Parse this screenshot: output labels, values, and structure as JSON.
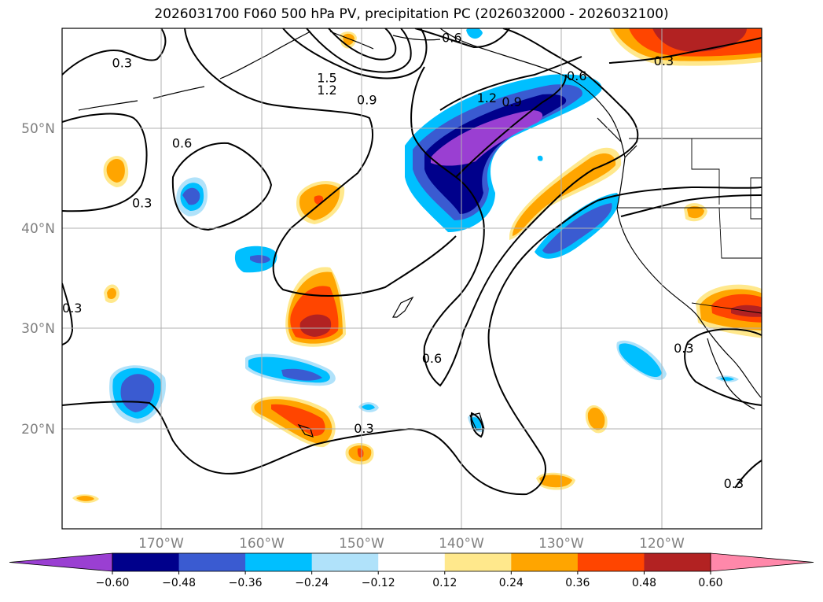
{
  "title": "2026031700 F060 500 hPa PV, precipitation PC (2026032000 - 2026032100)",
  "map": {
    "projection": "PlateCarree",
    "lon_range": [
      -180,
      -110
    ],
    "lat_range": [
      10,
      60
    ],
    "lon_ticks": [
      {
        "value": -170,
        "label": "170°W"
      },
      {
        "value": -160,
        "label": "160°W"
      },
      {
        "value": -150,
        "label": "150°W"
      },
      {
        "value": -140,
        "label": "140°W"
      },
      {
        "value": -130,
        "label": "130°W"
      },
      {
        "value": -120,
        "label": "120°W"
      }
    ],
    "lat_ticks": [
      {
        "value": 50,
        "label": "50°N"
      },
      {
        "value": 40,
        "label": "40°N"
      },
      {
        "value": 30,
        "label": "30°N"
      },
      {
        "value": 20,
        "label": "20°N"
      }
    ],
    "pv_contour_labels": [
      {
        "text": "0.3",
        "lon": -174,
        "lat": 56.5
      },
      {
        "text": "0.3",
        "lon": -172,
        "lat": 42.5
      },
      {
        "text": "0.3",
        "lon": -179,
        "lat": 32
      },
      {
        "text": "0.6",
        "lon": -168,
        "lat": 48.5
      },
      {
        "text": "1.5",
        "lon": -153.5,
        "lat": 55
      },
      {
        "text": "1.2",
        "lon": -153.5,
        "lat": 53.8
      },
      {
        "text": "0.9",
        "lon": -149.5,
        "lat": 52.8
      },
      {
        "text": "0.6",
        "lon": -141,
        "lat": 59
      },
      {
        "text": "1.2",
        "lon": -137.5,
        "lat": 53
      },
      {
        "text": "0.9",
        "lon": -135,
        "lat": 52.6
      },
      {
        "text": "0.6",
        "lon": -128.5,
        "lat": 55.2
      },
      {
        "text": "0.3",
        "lon": -119.8,
        "lat": 56.7
      },
      {
        "text": "0.6",
        "lon": -143,
        "lat": 27
      },
      {
        "text": "0.3",
        "lon": -149.8,
        "lat": 20
      },
      {
        "text": "0.3",
        "lon": -117.8,
        "lat": 28
      },
      {
        "text": "0.3",
        "lon": -112.8,
        "lat": 14.5
      }
    ]
  },
  "colorbar": {
    "levels": [
      "-0.60",
      "-0.48",
      "-0.36",
      "-0.24",
      "-0.12",
      "0.12",
      "0.24",
      "0.36",
      "0.48",
      "0.60"
    ],
    "colors": [
      "#9a3fd2",
      "#00008b",
      "#3a5bd1",
      "#00bfff",
      "#b0e2fa",
      "#ffffff",
      "#ffe88c",
      "#ffa500",
      "#ff4500",
      "#b22222",
      "#ff88aa"
    ]
  }
}
